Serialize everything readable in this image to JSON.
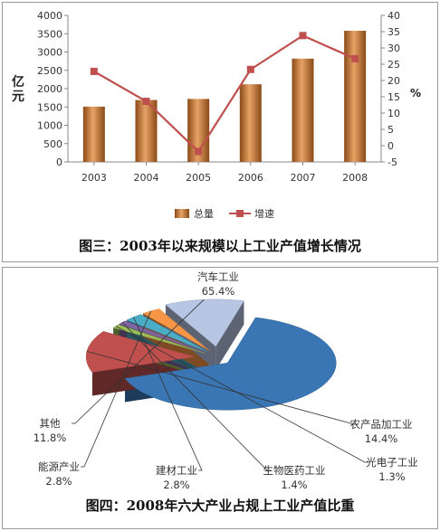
{
  "chart_data": [
    {
      "type": "bar+line",
      "title": "图三：2003年以来规模以上工业产值增长情况",
      "categories": [
        "2003",
        "2004",
        "2005",
        "2006",
        "2007",
        "2008"
      ],
      "ylabel_left": "亿元",
      "ylabel_right": "%",
      "ylim_left": [
        0,
        4000
      ],
      "yticks_left": [
        0,
        500,
        1000,
        1500,
        2000,
        2500,
        3000,
        3500,
        4000
      ],
      "ylim_right": [
        -5,
        40
      ],
      "yticks_right": [
        -5,
        0,
        5,
        10,
        15,
        20,
        25,
        30,
        35,
        40
      ],
      "legend_placement": "bottom",
      "series": [
        {
          "name": "总量",
          "kind": "bar",
          "axis": "left",
          "color": "#c8742e",
          "values": [
            1510,
            1690,
            1720,
            2120,
            2820,
            3580
          ]
        },
        {
          "name": "增速",
          "kind": "line",
          "axis": "right",
          "color": "#c0504d",
          "values": [
            22.8,
            13.6,
            -1.8,
            23.4,
            33.8,
            26.7
          ]
        }
      ]
    },
    {
      "type": "pie",
      "title": "图四：2008年六大产业占规上工业产值比重",
      "style": "exploded-3d",
      "slices": [
        {
          "label": "汽车工业",
          "value": 65.4,
          "pct": "65.4%",
          "color": "#3a76b4"
        },
        {
          "label": "农产品加工业",
          "value": 14.4,
          "pct": "14.4%",
          "color": "#c0504d"
        },
        {
          "label": "光电子工业",
          "value": 1.3,
          "pct": "1.3%",
          "color": "#9bbb59"
        },
        {
          "label": "生物医药工业",
          "value": 1.4,
          "pct": "1.4%",
          "color": "#8064a2"
        },
        {
          "label": "建材工业",
          "value": 2.8,
          "pct": "2.8%",
          "color": "#4bacc6"
        },
        {
          "label": "能源产业",
          "value": 2.8,
          "pct": "2.8%",
          "color": "#f79646"
        },
        {
          "label": "其他",
          "value": 11.8,
          "pct": "11.8%",
          "color": "#b7c6e3"
        }
      ]
    }
  ]
}
